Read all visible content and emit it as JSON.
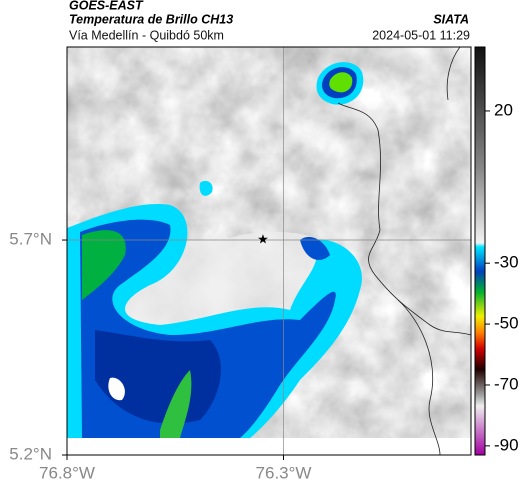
{
  "header": {
    "source": "GOES-EAST",
    "title": "Temperatura de Brillo CH13",
    "subtitle": "Vía Medellín - Quibdó 50km",
    "org": "SIATA",
    "timestamp": "2024-05-01 11:29"
  },
  "map": {
    "xlim": [
      -76.8,
      -75.867
    ],
    "ylim": [
      5.2,
      6.149
    ],
    "xticks": [
      {
        "value": -76.8,
        "label": "76.8°W"
      },
      {
        "value": -76.3,
        "label": "76.3°W"
      }
    ],
    "yticks": [
      {
        "value": 5.7,
        "label": "5.7°N"
      },
      {
        "value": 5.2,
        "label": "5.2°N"
      }
    ],
    "colorbar": {
      "lim": [
        -93,
        41
      ],
      "ticks": [
        20,
        -30,
        -50,
        -70,
        -90
      ]
    }
  }
}
